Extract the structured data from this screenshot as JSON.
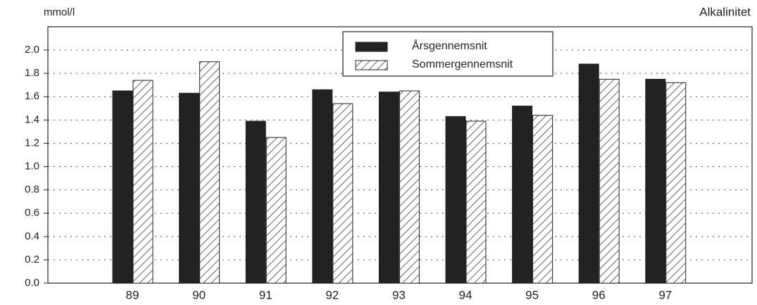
{
  "chart_data": {
    "type": "bar",
    "title": "Alkalinitet",
    "ylabel": "mmol/l",
    "categories": [
      "89",
      "90",
      "91",
      "92",
      "93",
      "94",
      "95",
      "96",
      "97"
    ],
    "series": [
      {
        "name": "Årsgennemsnit",
        "color": "#222222",
        "fill": "solid",
        "values": [
          1.65,
          1.63,
          1.39,
          1.66,
          1.64,
          1.43,
          1.52,
          1.88,
          1.75
        ]
      },
      {
        "name": "Sommergennemsnit",
        "color": "#222222",
        "fill": "hatch",
        "values": [
          1.74,
          1.9,
          1.25,
          1.54,
          1.65,
          1.39,
          1.44,
          1.75,
          1.72
        ]
      }
    ],
    "ylim": [
      0,
      2.2
    ],
    "yticks": [
      {
        "value": 0,
        "label": "0.0"
      },
      0.2,
      0.4,
      0.6,
      0.8,
      {
        "value": 1,
        "label": "1.0"
      },
      1.2,
      1.4,
      1.6,
      1.8,
      {
        "value": 2,
        "label": "2.0"
      }
    ],
    "grid": true,
    "legend": "top"
  }
}
